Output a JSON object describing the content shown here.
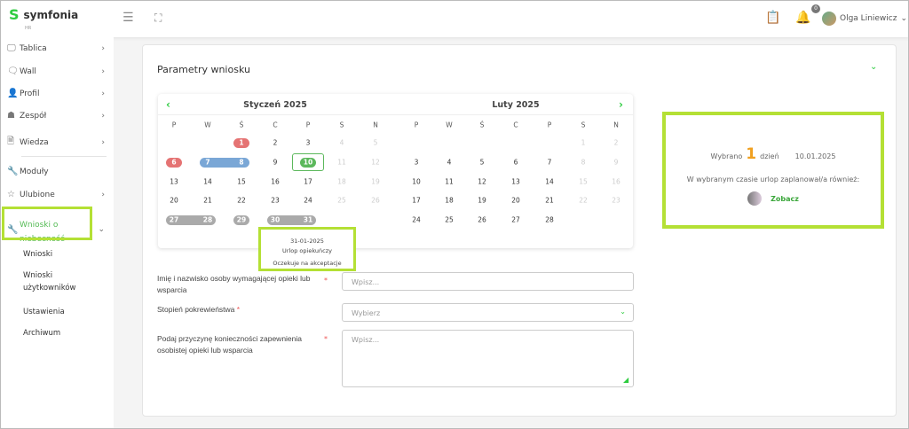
{
  "header": {
    "logo": "symfonia",
    "logo_sub": "HR",
    "notification_count": "0",
    "user_name": "Olga Liniewicz"
  },
  "sidebar": {
    "items": [
      {
        "label": "Tablica",
        "icon": "monitor-icon",
        "chevron": true
      },
      {
        "label": "Wall",
        "icon": "chat-icon",
        "chevron": true
      },
      {
        "label": "Profil",
        "icon": "user-icon",
        "chevron": true
      },
      {
        "label": "Zespół",
        "icon": "team-icon",
        "chevron": true
      },
      {
        "label": "Wiedza",
        "icon": "document-icon",
        "chevron": true
      },
      {
        "label": "Moduły",
        "icon": "wrench-icon",
        "chevron": false
      },
      {
        "label": "Ulubione",
        "icon": "star-icon",
        "chevron": true
      },
      {
        "label": "Wnioski o niebecność",
        "icon": "wrench-icon",
        "chevron": true,
        "active": true
      }
    ],
    "subitems": [
      "Wnioski",
      "Wnioski użytkowników",
      "Ustawienia",
      "Archiwum"
    ]
  },
  "card": {
    "title": "Parametry wniosku"
  },
  "calendar": {
    "weekdays": [
      "P",
      "W",
      "Ś",
      "C",
      "P",
      "S",
      "N"
    ],
    "months": [
      {
        "title": "Styczeń 2025",
        "days": 31,
        "offset": 2
      },
      {
        "title": "Luty 2025",
        "days": 28,
        "offset": 5
      }
    ],
    "marked": [
      {
        "month": 0,
        "from": 1,
        "to": 1,
        "color": "#e57373"
      },
      {
        "month": 0,
        "from": 6,
        "to": 6,
        "color": "#e57373"
      },
      {
        "month": 0,
        "from": 7,
        "to": 8,
        "color": "#7aa7d6"
      },
      {
        "month": 0,
        "from": 10,
        "to": 10,
        "color": "#5cb85c",
        "selected": true
      },
      {
        "month": 0,
        "from": 27,
        "to": 28,
        "color": "#aaaaaa"
      },
      {
        "month": 0,
        "from": 29,
        "to": 29,
        "color": "#aaaaaa"
      },
      {
        "month": 0,
        "from": 30,
        "to": 31,
        "color": "#aaaaaa"
      }
    ],
    "tooltip": {
      "date": "31-01-2025",
      "type": "Urlop opiekuńczy",
      "status": "Oczekuje na akceptacje"
    }
  },
  "form": {
    "fields": [
      {
        "label": "Imię i nazwisko osoby wymagającej opieki lub wsparcia",
        "placeholder": "Wpisz..."
      },
      {
        "label": "Stopień pokrewieństwa",
        "placeholder": "Wybierz"
      },
      {
        "label": "Podaj przyczynę konieczności zapewnienia osobistej opieki lub wsparcia",
        "placeholder": "Wpisz..."
      }
    ]
  },
  "summary": {
    "selected_prefix": "Wybrano",
    "count": "1",
    "unit": "dzień",
    "date": "10.01.2025",
    "also_text": "W wybranym czasie urlop zaplanował/a również:",
    "link": "Zobacz"
  },
  "colors": {
    "accent": "#2ecc40",
    "highlight": "#b4e035",
    "count": "#f0a020"
  }
}
